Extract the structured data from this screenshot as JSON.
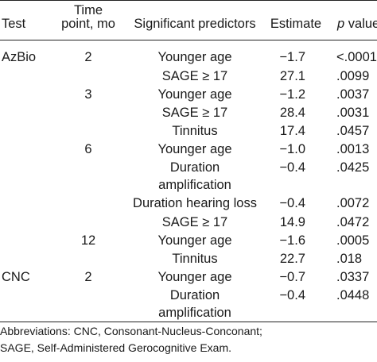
{
  "header": {
    "test": "Test",
    "time_point_line1": "Time",
    "time_point_line2": "point, mo",
    "predictors": "Significant predictors",
    "estimate": "Estimate",
    "p_italic": "p",
    "p_rest": " value"
  },
  "rows": [
    {
      "test": "AzBio",
      "time": "2",
      "predictor": "Younger age",
      "estimate": "−1.7",
      "p": "<.0001"
    },
    {
      "test": "",
      "time": "",
      "predictor": "SAGE ≥ 17",
      "estimate": "27.1",
      "p": ".0099"
    },
    {
      "test": "",
      "time": "3",
      "predictor": "Younger age",
      "estimate": "−1.2",
      "p": ".0037"
    },
    {
      "test": "",
      "time": "",
      "predictor": "SAGE ≥ 17",
      "estimate": "28.4",
      "p": ".0031"
    },
    {
      "test": "",
      "time": "",
      "predictor": "Tinnitus",
      "estimate": "17.4",
      "p": ".0457"
    },
    {
      "test": "",
      "time": "6",
      "predictor": "Younger age",
      "estimate": "−1.0",
      "p": ".0013"
    },
    {
      "test": "",
      "time": "",
      "predictor": "Duration",
      "predictor2": "amplification",
      "estimate": "−0.4",
      "p": ".0425"
    },
    {
      "test": "",
      "time": "",
      "predictor": "Duration hearing loss",
      "estimate": "−0.4",
      "p": ".0072"
    },
    {
      "test": "",
      "time": "",
      "predictor": "SAGE ≥ 17",
      "estimate": "14.9",
      "p": ".0472"
    },
    {
      "test": "",
      "time": "12",
      "predictor": "Younger age",
      "estimate": "−1.6",
      "p": ".0005"
    },
    {
      "test": "",
      "time": "",
      "predictor": "Tinnitus",
      "estimate": "22.7",
      "p": ".018"
    },
    {
      "test": "CNC",
      "time": "2",
      "predictor": "Younger age",
      "estimate": "−0.7",
      "p": ".0337"
    },
    {
      "test": "",
      "time": "",
      "predictor": "Duration",
      "predictor2": "amplification",
      "estimate": "−0.4",
      "p": ".0448"
    }
  ],
  "footnote": {
    "line1": "Abbreviations: CNC, Consonant-Nucleus-Conconant;",
    "line2": "SAGE, Self-Administered Gerocognitive Exam."
  }
}
